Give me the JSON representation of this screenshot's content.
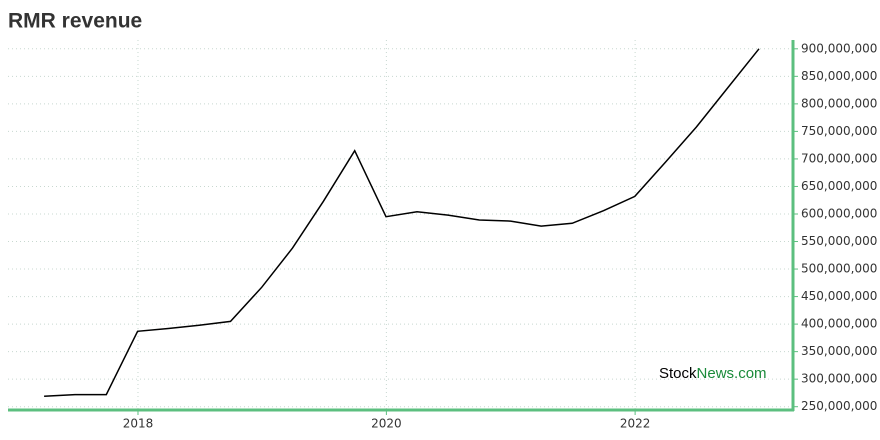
{
  "chart_data": {
    "type": "line",
    "title": "RMR revenue",
    "x": [
      "2017-03-31",
      "2017-06-30",
      "2017-09-30",
      "2017-12-31",
      "2018-03-31",
      "2018-06-30",
      "2018-09-30",
      "2018-12-31",
      "2019-03-31",
      "2019-06-30",
      "2019-09-30",
      "2019-12-31",
      "2020-03-31",
      "2020-06-30",
      "2020-09-30",
      "2020-12-31",
      "2021-03-31",
      "2021-06-30",
      "2021-09-30",
      "2021-12-31",
      "2022-03-31",
      "2022-06-30",
      "2022-09-30",
      "2022-12-31"
    ],
    "series": [
      {
        "name": "RMR revenue",
        "color": "#000000",
        "values": [
          269000000,
          272000000,
          272000000,
          387000000,
          392000000,
          398000000,
          405000000,
          467000000,
          538000000,
          623000000,
          715000000,
          595000000,
          604000000,
          598000000,
          589000000,
          587000000,
          578000000,
          583000000,
          606000000,
          632000000,
          694000000,
          758000000,
          829000000,
          900000000
        ]
      }
    ],
    "xlim": [
      "2016-12-15",
      "2023-04-10"
    ],
    "xticks": [
      {
        "value": "2018-01-01",
        "label": "2018"
      },
      {
        "value": "2020-01-01",
        "label": "2020"
      },
      {
        "value": "2022-01-01",
        "label": "2022"
      }
    ],
    "ylim": [
      244000000,
      916000000
    ],
    "yticks": [
      {
        "value": 250000000,
        "label": "250,000,000"
      },
      {
        "value": 300000000,
        "label": "300,000,000"
      },
      {
        "value": 350000000,
        "label": "350,000,000"
      },
      {
        "value": 400000000,
        "label": "400,000,000"
      },
      {
        "value": 450000000,
        "label": "450,000,000"
      },
      {
        "value": 500000000,
        "label": "500,000,000"
      },
      {
        "value": 550000000,
        "label": "550,000,000"
      },
      {
        "value": 600000000,
        "label": "600,000,000"
      },
      {
        "value": 650000000,
        "label": "650,000,000"
      },
      {
        "value": 700000000,
        "label": "700,000,000"
      },
      {
        "value": 750000000,
        "label": "750,000,000"
      },
      {
        "value": 800000000,
        "label": "800,000,000"
      },
      {
        "value": 850000000,
        "label": "850,000,000"
      },
      {
        "value": 900000000,
        "label": "900,000,000"
      }
    ],
    "grid": true,
    "axis_color": "#5cbf7f",
    "watermark": {
      "prefix": "Stock",
      "suffix": "News.com"
    }
  }
}
